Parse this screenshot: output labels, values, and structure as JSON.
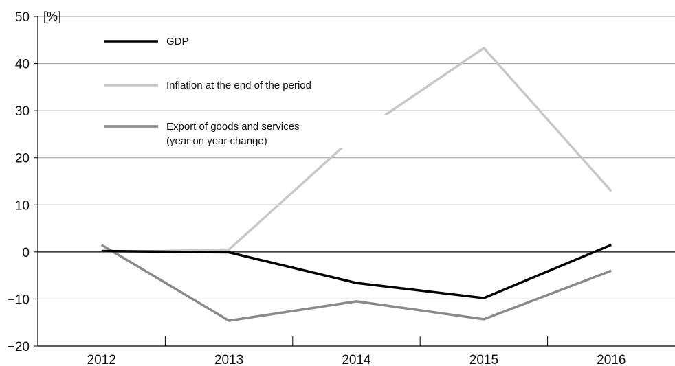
{
  "chart_data": {
    "type": "line",
    "title": "",
    "xlabel": "",
    "ylabel": "[%]",
    "categories": [
      "2012",
      "2013",
      "2014",
      "2015",
      "2016"
    ],
    "ylim": [
      -20,
      50
    ],
    "yticks": [
      -20,
      -10,
      0,
      10,
      20,
      30,
      40,
      50
    ],
    "grid": true,
    "legend_position": "top-left",
    "series": [
      {
        "name": "GDP",
        "color": "#000000",
        "values": [
          0.2,
          -0.1,
          -6.6,
          -9.8,
          1.5
        ]
      },
      {
        "name": "Inflation at the end of the period",
        "color": "#c8c8c8",
        "values": [
          -0.1,
          0.5,
          24.9,
          43.3,
          12.9
        ]
      },
      {
        "name": "Export of goods and services",
        "name_line2": "(year on year change)",
        "color": "#8a8a8a",
        "values": [
          1.5,
          -14.6,
          -10.5,
          -14.3,
          -4.0
        ]
      }
    ]
  }
}
